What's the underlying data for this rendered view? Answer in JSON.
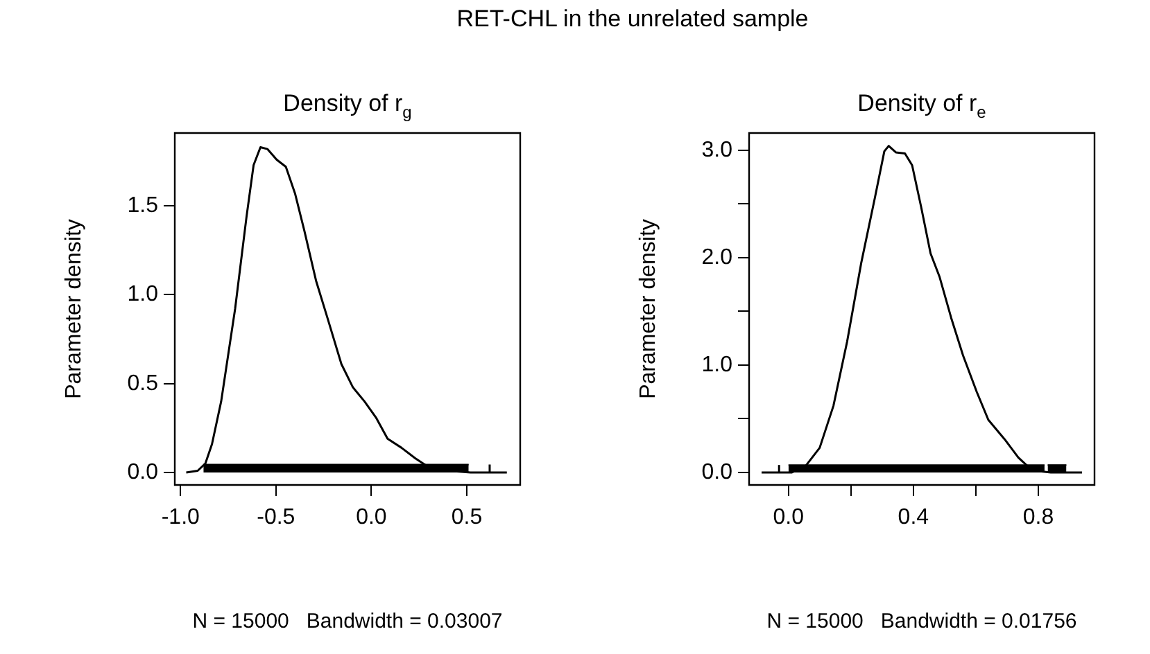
{
  "chart_data": [
    {
      "type": "line",
      "title": "Density of r$_{g}$",
      "xlabel": "N = 15000   Bandwidth = 0.03007",
      "ylabel": "Parameter density",
      "annotations": [
        "RET-CHL in the unrelated sample"
      ],
      "xlim": [
        -1.03,
        0.78
      ],
      "ylim": [
        -0.07,
        1.91
      ],
      "xticks": [
        {
          "value": -1,
          "label": "-1.0"
        },
        -0.5,
        {
          "value": 0,
          "label": "0.0"
        },
        0.5
      ],
      "yticks": [
        {
          "value": 0,
          "label": "0.0"
        },
        0.5,
        {
          "value": 1,
          "label": "1.0"
        },
        1.5
      ],
      "grid": false,
      "legend": false,
      "marker": "none",
      "line_style": "solid",
      "x": [
        -0.97,
        -0.91,
        -0.87,
        -0.835,
        -0.787,
        -0.714,
        -0.654,
        -0.617,
        -0.581,
        -0.545,
        -0.496,
        -0.448,
        -0.4,
        -0.351,
        -0.29,
        -0.23,
        -0.157,
        -0.097,
        -0.036,
        0.024,
        0.085,
        0.157,
        0.23,
        0.3,
        0.4,
        0.52,
        0.71
      ],
      "series": [
        {
          "color": "#000000",
          "values": [
            0,
            0.01,
            0.05,
            0.16,
            0.4,
            0.92,
            1.44,
            1.73,
            1.83,
            1.82,
            1.76,
            1.72,
            1.57,
            1.36,
            1.08,
            0.87,
            0.61,
            0.48,
            0.4,
            0.31,
            0.19,
            0.14,
            0.08,
            0.03,
            0.01,
            0,
            0
          ]
        },
        {
          "type": "area",
          "color": "#000000",
          "x": [
            -0.88,
            0.51
          ],
          "values": [
            0.045,
            0.045
          ]
        },
        {
          "type": "line",
          "color": "#000000",
          "x": [
            0.62,
            0.62
          ],
          "values": [
            0,
            0.045
          ]
        }
      ]
    },
    {
      "type": "line",
      "title": "Density of r$_{e}$",
      "xlabel": "N = 15000   Bandwidth = 0.01756",
      "ylabel": "Parameter density",
      "xlim": [
        -0.126,
        0.98
      ],
      "ylim": [
        -0.116,
        3.16
      ],
      "xticks": [
        {
          "value": 0,
          "label": "0.0"
        },
        {
          "value": 0.2,
          "label": null
        },
        0.4,
        {
          "value": 0.6,
          "label": null
        },
        0.8
      ],
      "yticks": [
        {
          "value": 0,
          "label": "0.0"
        },
        {
          "value": 0.5,
          "label": null
        },
        {
          "value": 1,
          "label": "1.0"
        },
        {
          "value": 1.5,
          "label": null
        },
        {
          "value": 2,
          "label": "2.0"
        },
        {
          "value": 2.5,
          "label": null
        },
        {
          "value": 3,
          "label": "3.0"
        }
      ],
      "grid": false,
      "legend": false,
      "marker": "none",
      "line_style": "solid",
      "x": [
        -0.086,
        0.01,
        0.055,
        0.1,
        0.144,
        0.188,
        0.233,
        0.277,
        0.307,
        0.321,
        0.344,
        0.373,
        0.396,
        0.425,
        0.455,
        0.484,
        0.521,
        0.559,
        0.603,
        0.64,
        0.692,
        0.736,
        0.78,
        0.84,
        0.94
      ],
      "series": [
        {
          "color": "#000000",
          "values": [
            0,
            0,
            0.06,
            0.23,
            0.62,
            1.22,
            1.95,
            2.56,
            2.99,
            3.04,
            2.98,
            2.97,
            2.86,
            2.47,
            2.04,
            1.82,
            1.44,
            1.09,
            0.75,
            0.49,
            0.31,
            0.14,
            0.02,
            0,
            0
          ]
        },
        {
          "type": "line",
          "color": "#000000",
          "x": [
            -0.03,
            -0.03
          ],
          "values": [
            0,
            0.07
          ]
        },
        {
          "type": "area",
          "color": "#000000",
          "x": [
            0.0,
            0.82
          ],
          "values": [
            0.07,
            0.07
          ]
        },
        {
          "type": "area",
          "color": "#000000",
          "x": [
            0.83,
            0.89
          ],
          "values": [
            0.07,
            0.07
          ]
        }
      ]
    }
  ]
}
